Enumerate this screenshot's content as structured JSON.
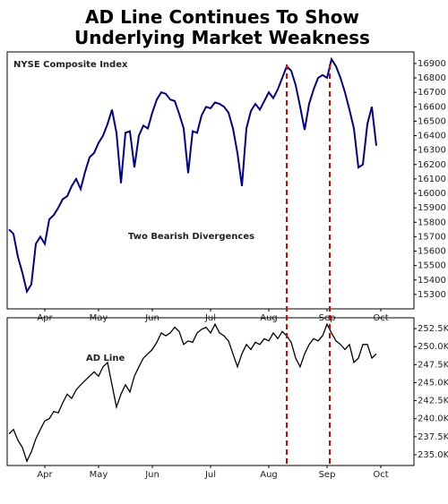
{
  "chart_data": [
    {
      "type": "line",
      "title": "AD Line Continues To Show Underlying Market Weakness",
      "annotation": "Two Bearish Divergences",
      "divergences": [
        62,
        71.6
      ],
      "xlim": [
        -0.4,
        90.4
      ],
      "xticks": [
        {
          "value": 8,
          "label": "Apr"
        },
        {
          "value": 20,
          "label": "May"
        },
        {
          "value": 32,
          "label": "Jun"
        },
        {
          "value": 45,
          "label": "Jul"
        },
        {
          "value": 58,
          "label": "Aug"
        },
        {
          "value": 71,
          "label": "Sep"
        },
        {
          "value": 83,
          "label": "Oct"
        }
      ],
      "ylim": [
        15200,
        16980
      ],
      "yticks": [
        15300,
        15400,
        15500,
        15600,
        15700,
        15800,
        15900,
        16000,
        16100,
        16200,
        16300,
        16400,
        16500,
        16600,
        16700,
        16800,
        16900
      ],
      "series": [
        {
          "name": "NYSE Composite Index",
          "color": "#00008b",
          "values": [
            15750,
            15720,
            15560,
            15450,
            15320,
            15370,
            15650,
            15700,
            15650,
            15820,
            15850,
            15900,
            15960,
            15980,
            16050,
            16100,
            16030,
            16150,
            16250,
            16280,
            16350,
            16400,
            16480,
            16580,
            16420,
            16070,
            16420,
            16430,
            16180,
            16400,
            16470,
            16450,
            16560,
            16650,
            16700,
            16690,
            16650,
            16640,
            16550,
            16450,
            16140,
            16430,
            16420,
            16540,
            16600,
            16590,
            16630,
            16620,
            16600,
            16560,
            16450,
            16280,
            16050,
            16450,
            16570,
            16620,
            16580,
            16640,
            16700,
            16660,
            16720,
            16800,
            16880,
            16850,
            16750,
            16600,
            16440,
            16620,
            16720,
            16800,
            16820,
            16800,
            16930,
            16880,
            16800,
            16700,
            16580,
            16450,
            16180,
            16200,
            16480,
            16600,
            16330
          ]
        }
      ]
    },
    {
      "type": "line",
      "xlim": [
        -0.4,
        90.4
      ],
      "xticks": [
        {
          "value": 8,
          "label": "Apr"
        },
        {
          "value": 20,
          "label": "May"
        },
        {
          "value": 32,
          "label": "Jun"
        },
        {
          "value": 45,
          "label": "Jul"
        },
        {
          "value": 58,
          "label": "Aug"
        },
        {
          "value": 71,
          "label": "Sep"
        },
        {
          "value": 83,
          "label": "Oct"
        }
      ],
      "ylim": [
        233.5,
        254
      ],
      "yticks": [
        {
          "value": 235,
          "label": "235.0K"
        },
        {
          "value": 237.5,
          "label": "237.5K"
        },
        {
          "value": 240,
          "label": "240.0K"
        },
        {
          "value": 242.5,
          "label": "242.5K"
        },
        {
          "value": 245,
          "label": "245.0K"
        },
        {
          "value": 247.5,
          "label": "247.5K"
        },
        {
          "value": 250,
          "label": "250.0K"
        },
        {
          "value": 252.5,
          "label": "252.5K"
        }
      ],
      "series": [
        {
          "name": "AD Line",
          "color": "#000000",
          "values": [
            237.9,
            238.5,
            237,
            236,
            234.1,
            235.4,
            237.2,
            238.5,
            239.7,
            240,
            241,
            240.8,
            242.2,
            243.4,
            242.8,
            244,
            244.7,
            245.3,
            245.9,
            246.5,
            245.9,
            247.2,
            247.8,
            244.7,
            241.6,
            243.4,
            244.7,
            243.7,
            245.9,
            247.2,
            248.4,
            249,
            249.6,
            250.6,
            251.9,
            251.5,
            251.9,
            252.7,
            252.1,
            250.3,
            250.8,
            250.6,
            251.9,
            252.4,
            252.7,
            251.9,
            253.1,
            251.9,
            251.5,
            250.8,
            249,
            247.2,
            249,
            250.3,
            249.6,
            250.6,
            250.3,
            251.1,
            250.8,
            251.9,
            251.1,
            252.1,
            251.5,
            250.6,
            248.4,
            247.2,
            249,
            250.3,
            251.1,
            250.8,
            251.5,
            253.1,
            251.9,
            250.8,
            250.3,
            249.6,
            250.3,
            247.8,
            248.4,
            250.3,
            250.3,
            248.4,
            249
          ]
        }
      ]
    }
  ]
}
